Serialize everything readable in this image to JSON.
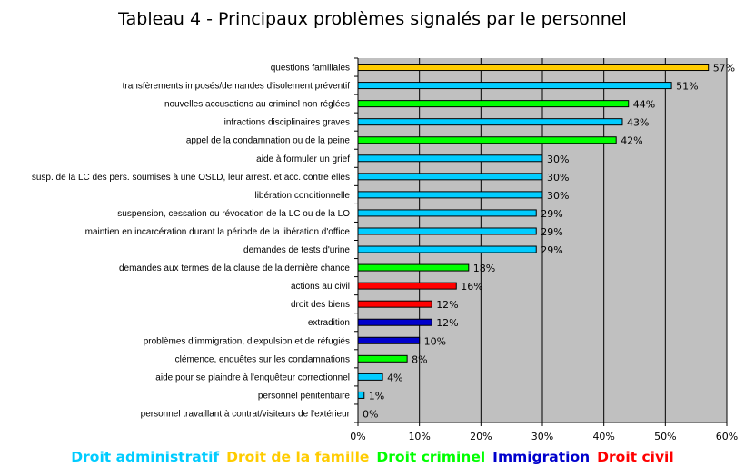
{
  "chart_data": {
    "type": "bar",
    "orientation": "horizontal",
    "title": "Tableau 4 - Principaux problèmes signalés par le personnel",
    "xlim": [
      0,
      60
    ],
    "x_ticks": [
      "0%",
      "10%",
      "20%",
      "30%",
      "40%",
      "50%",
      "60%"
    ],
    "grid": true,
    "legend_position": "bottom",
    "legend": [
      {
        "label": "Droit administratif",
        "color": "#00ccff"
      },
      {
        "label": "Droit de la famille",
        "color": "#ffcc00"
      },
      {
        "label": "Droit criminel",
        "color": "#00ff00"
      },
      {
        "label": "Immigration",
        "color": "#0000cc"
      },
      {
        "label": "Droit civil",
        "color": "#ff0000"
      }
    ],
    "plot_background": "#c0c0c0",
    "bars": [
      {
        "label": "questions familiales",
        "value": 57,
        "value_label": "57%",
        "color": "#ffcc00"
      },
      {
        "label": "transfèrements imposés/demandes d'isolement préventif",
        "value": 51,
        "value_label": "51%",
        "color": "#00ccff"
      },
      {
        "label": "nouvelles accusations au criminel non réglées",
        "value": 44,
        "value_label": "44%",
        "color": "#00ff00"
      },
      {
        "label": "infractions disciplinaires graves",
        "value": 43,
        "value_label": "43%",
        "color": "#00ccff"
      },
      {
        "label": "appel de la condamnation ou de la peine",
        "value": 42,
        "value_label": "42%",
        "color": "#00ff00"
      },
      {
        "label": "aide à formuler un grief",
        "value": 30,
        "value_label": "30%",
        "color": "#00ccff"
      },
      {
        "label": "susp. de la LC des pers. soumises à une OSLD, leur arrest. et acc. contre elles",
        "value": 30,
        "value_label": "30%",
        "color": "#00ccff"
      },
      {
        "label": "libération conditionnelle",
        "value": 30,
        "value_label": "30%",
        "color": "#00ccff"
      },
      {
        "label": "suspension, cessation ou révocation de la LC ou de la LO",
        "value": 29,
        "value_label": "29%",
        "color": "#00ccff"
      },
      {
        "label": "maintien en incarcération durant la période de la libération d'office",
        "value": 29,
        "value_label": "29%",
        "color": "#00ccff"
      },
      {
        "label": "demandes de tests d'urine",
        "value": 29,
        "value_label": "29%",
        "color": "#00ccff"
      },
      {
        "label": "demandes aux termes de la clause de la dernière chance",
        "value": 18,
        "value_label": "18%",
        "color": "#00ff00"
      },
      {
        "label": "actions au civil",
        "value": 16,
        "value_label": "16%",
        "color": "#ff0000"
      },
      {
        "label": "droit des biens",
        "value": 12,
        "value_label": "12%",
        "color": "#ff0000"
      },
      {
        "label": "extradition",
        "value": 12,
        "value_label": "12%",
        "color": "#0000cc"
      },
      {
        "label": "problèmes d'immigration, d'expulsion et de réfugiés",
        "value": 10,
        "value_label": "10%",
        "color": "#0000cc"
      },
      {
        "label": "clémence, enquêtes sur les condamnations",
        "value": 8,
        "value_label": "8%",
        "color": "#00ff00"
      },
      {
        "label": "aide pour se plaindre à l'enquêteur correctionnel",
        "value": 4,
        "value_label": "4%",
        "color": "#00ccff"
      },
      {
        "label": "personnel pénitentiaire",
        "value": 1,
        "value_label": "1%",
        "color": "#00ccff"
      },
      {
        "label": "personnel travaillant à contrat/visiteurs de l'extérieur",
        "value": 0,
        "value_label": "0%",
        "color": "#00ccff"
      }
    ]
  }
}
